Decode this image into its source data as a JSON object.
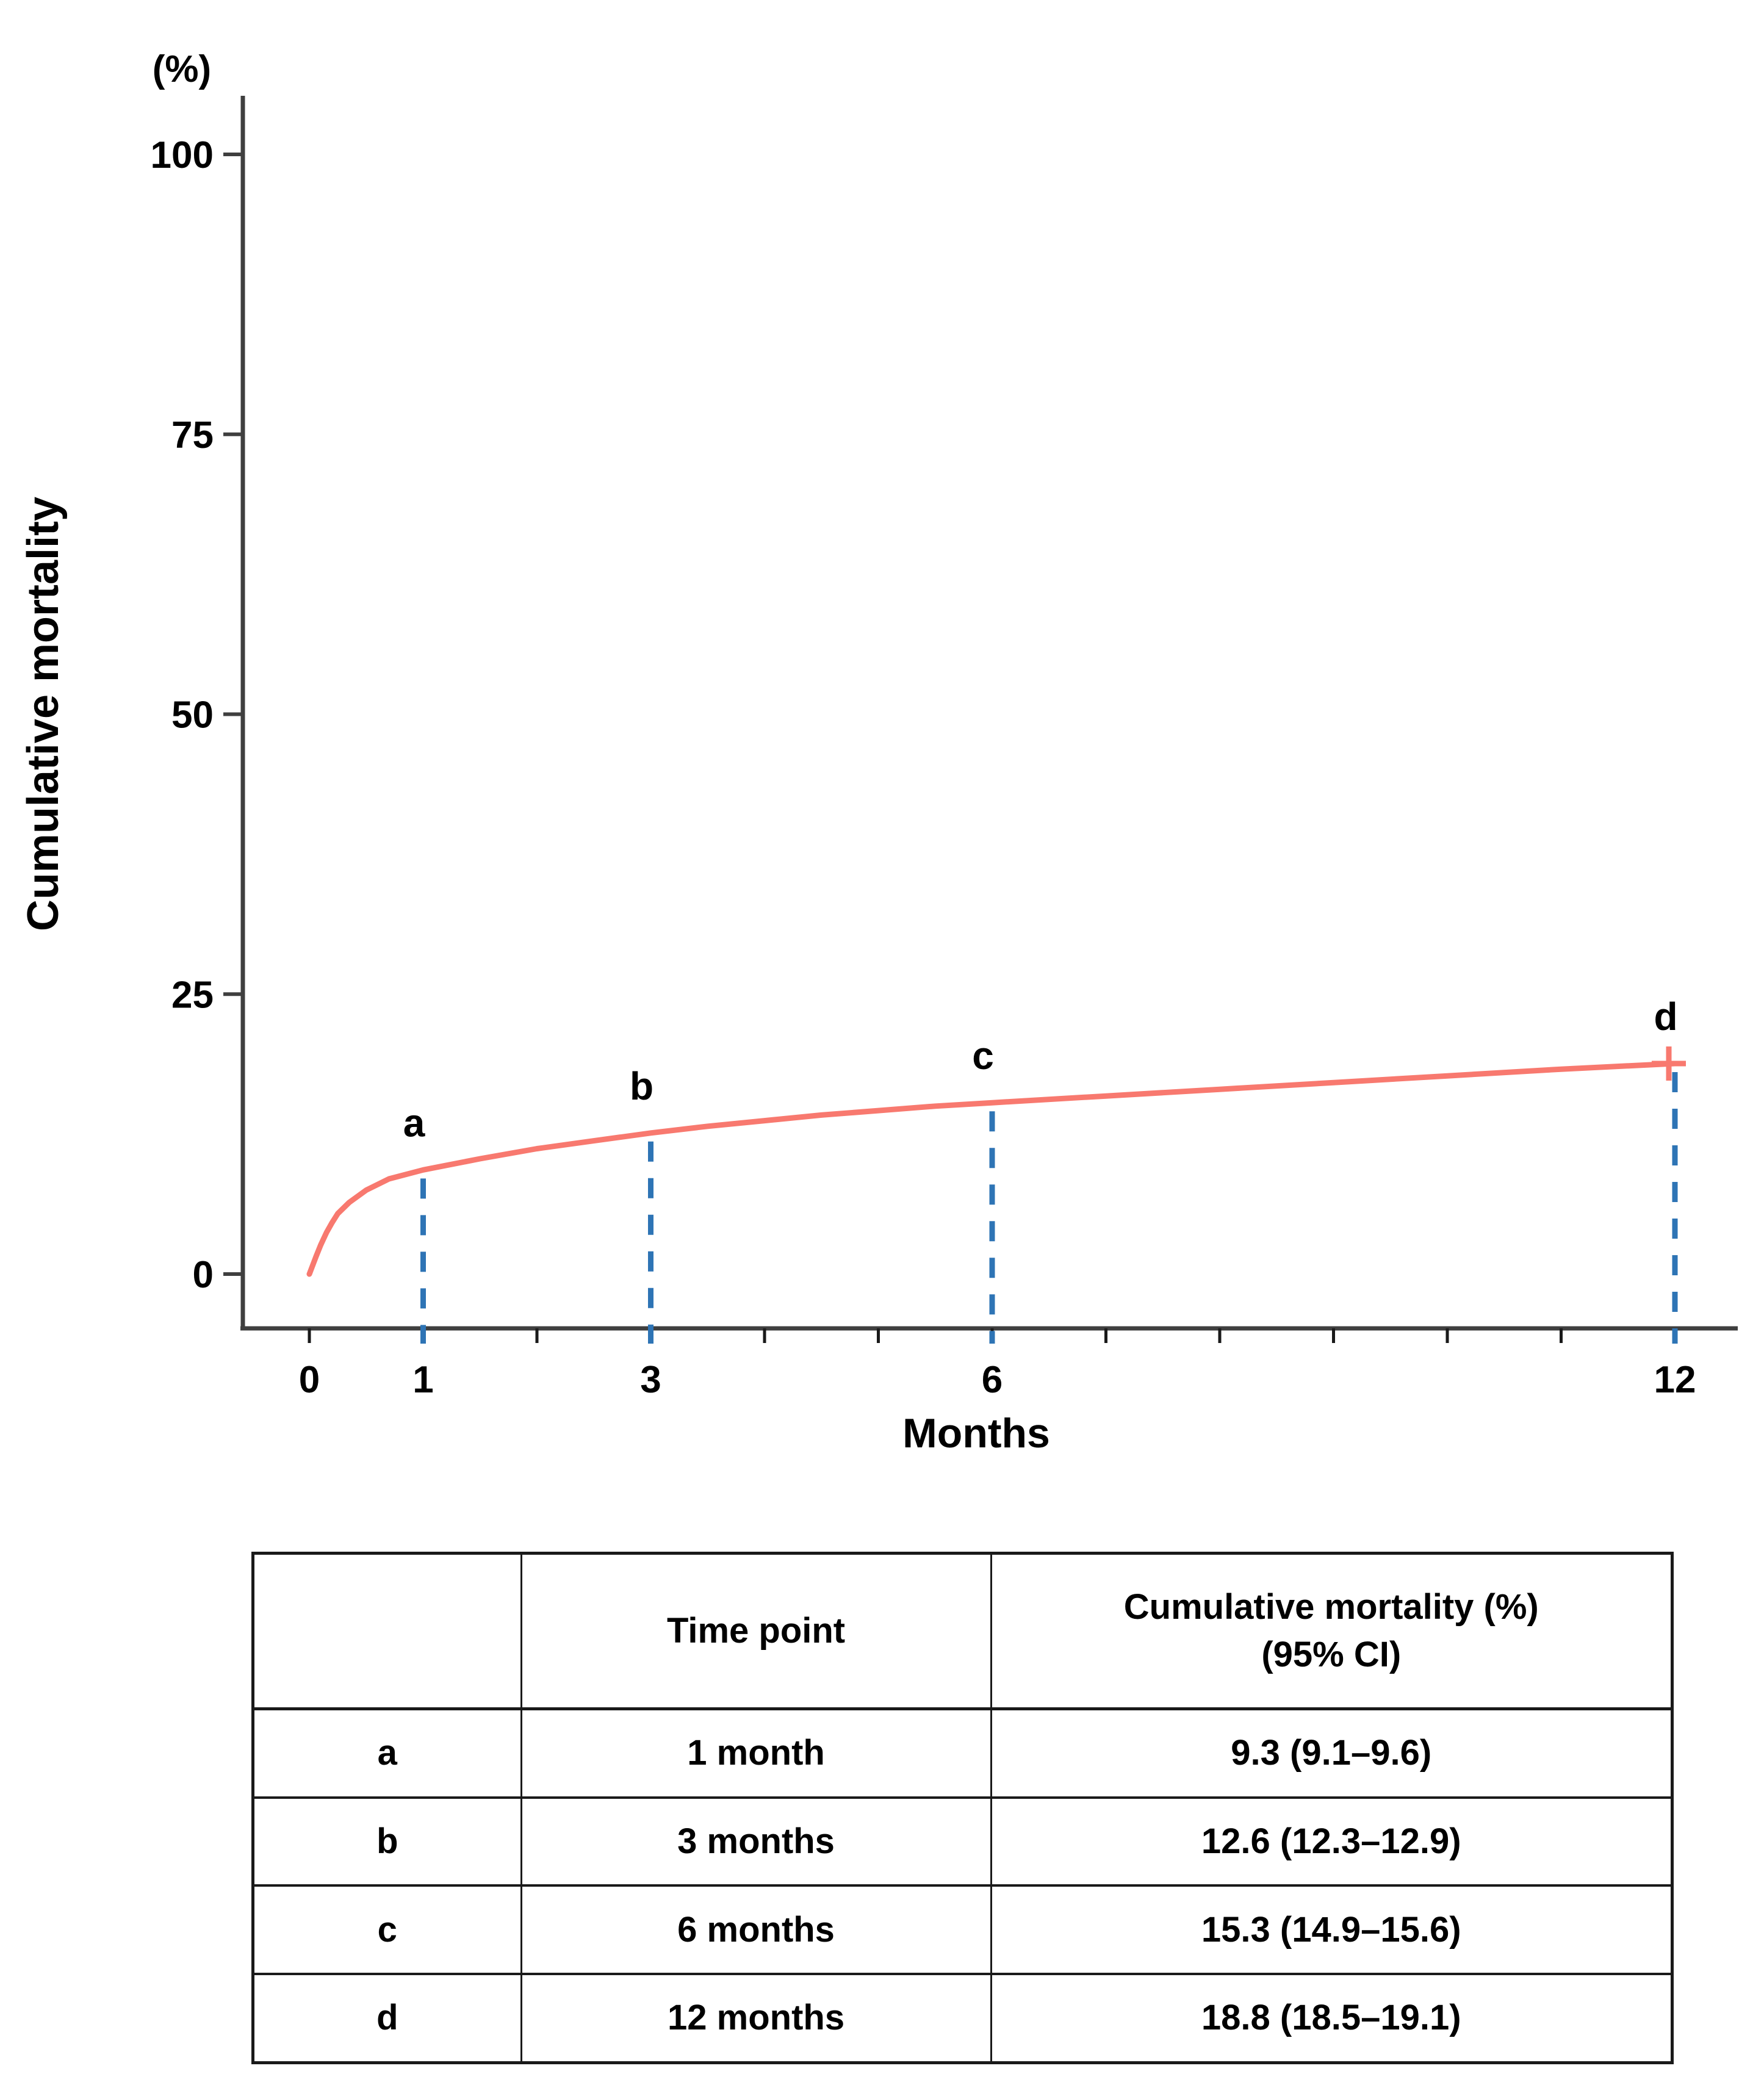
{
  "figure": {
    "y_axis_unit_label": "(%)",
    "y_axis_title": "Cumulative mortality",
    "x_axis_title": "Months"
  },
  "chart_data": {
    "type": "line",
    "title": "",
    "xlabel": "Months",
    "ylabel": "Cumulative mortality",
    "y_unit_label": "(%)",
    "ylim": [
      0,
      100
    ],
    "y_ticks": [
      0,
      25,
      50,
      75,
      100
    ],
    "x_tick_marks": [
      0,
      1,
      2,
      3,
      4,
      5,
      6,
      7,
      8,
      9,
      10,
      11,
      12
    ],
    "x_tick_labels": [
      0,
      1,
      3,
      6,
      12
    ],
    "grid": false,
    "legend": "none",
    "curve_color": "#f8796f",
    "dashed_line_color": "#2e74b5",
    "axis_color": "#3f3f3f",
    "series": [
      {
        "name": "Cumulative mortality",
        "points": [
          [
            0,
            0
          ],
          [
            0.03,
            0.8
          ],
          [
            0.06,
            1.6
          ],
          [
            0.1,
            2.6
          ],
          [
            0.15,
            3.7
          ],
          [
            0.2,
            4.6
          ],
          [
            0.25,
            5.4
          ],
          [
            0.35,
            6.4
          ],
          [
            0.5,
            7.5
          ],
          [
            0.7,
            8.5
          ],
          [
            1,
            9.3
          ],
          [
            1.5,
            10.3
          ],
          [
            2,
            11.2
          ],
          [
            2.5,
            11.9
          ],
          [
            3,
            12.6
          ],
          [
            3.5,
            13.2
          ],
          [
            4,
            13.7
          ],
          [
            4.5,
            14.2
          ],
          [
            5,
            14.6
          ],
          [
            5.5,
            15.0
          ],
          [
            6,
            15.3
          ],
          [
            7,
            15.9
          ],
          [
            8,
            16.5
          ],
          [
            9,
            17.1
          ],
          [
            10,
            17.7
          ],
          [
            11,
            18.3
          ],
          [
            12,
            18.8
          ]
        ]
      }
    ],
    "annotations": [
      {
        "label": "a",
        "month": 1,
        "value": 9.3
      },
      {
        "label": "b",
        "month": 3,
        "value": 12.6
      },
      {
        "label": "c",
        "month": 6,
        "value": 15.3
      },
      {
        "label": "d",
        "month": 12,
        "value": 18.8
      }
    ],
    "censor_mark": {
      "month": 12,
      "value": 18.8,
      "symbol": "+"
    }
  },
  "table": {
    "headers": {
      "col1": "",
      "col2": "Time point",
      "col3_line1": "Cumulative mortality (%)",
      "col3_line2": "(95% CI)"
    },
    "rows": [
      {
        "key": "a",
        "time_point": "1 month",
        "value": "9.3 (9.1–9.6)"
      },
      {
        "key": "b",
        "time_point": "3 months",
        "value": "12.6 (12.3–12.9)"
      },
      {
        "key": "c",
        "time_point": "6 months",
        "value": "15.3 (14.9–15.6)"
      },
      {
        "key": "d",
        "time_point": "12 months",
        "value": "18.8 (18.5–19.1)"
      }
    ]
  }
}
